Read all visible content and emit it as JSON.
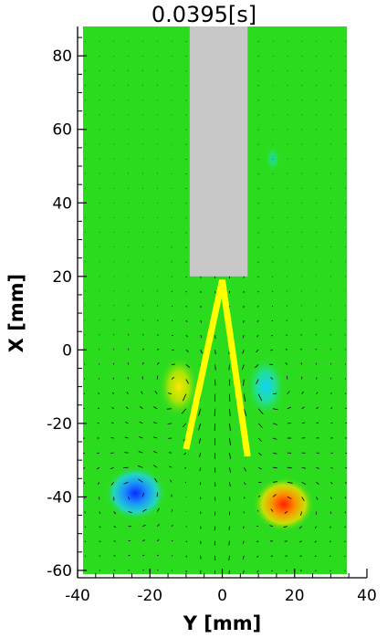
{
  "chart_data": {
    "type": "heatmap",
    "title": "0.0395[s]",
    "xlabel": "Y [mm]",
    "ylabel": "X [mm]",
    "xlim": [
      -40,
      40
    ],
    "ylim": [
      -62,
      88
    ],
    "xticks": [
      -40,
      -20,
      0,
      20,
      40
    ],
    "yticks": [
      -60,
      -40,
      -20,
      0,
      20,
      40,
      60,
      80
    ],
    "field_extent": {
      "x": [
        -38.5,
        34.5
      ],
      "y": [
        -61,
        88
      ]
    },
    "background_color": "#2bdc1e",
    "nozzle": {
      "x": [
        -9,
        7
      ],
      "y_bottom": 20,
      "color": "#c8c8c8"
    },
    "flame_tip": {
      "points": [
        [
          -10,
          -27
        ],
        [
          0,
          19
        ],
        [
          7,
          -29
        ]
      ],
      "color": "#ffff00"
    },
    "vortices": [
      {
        "x": -24,
        "y": -39,
        "sign": "negative",
        "peak_color": "#0033ff"
      },
      {
        "x": 17,
        "y": -42,
        "sign": "positive",
        "peak_color": "#ff2200"
      },
      {
        "x": -12,
        "y": -10,
        "sign": "positive",
        "peak_color": "#ffee00"
      },
      {
        "x": 12,
        "y": -10,
        "sign": "negative",
        "peak_color": "#00ccff"
      }
    ],
    "colors": {
      "axis": "#000000",
      "vector": "#000000"
    }
  }
}
